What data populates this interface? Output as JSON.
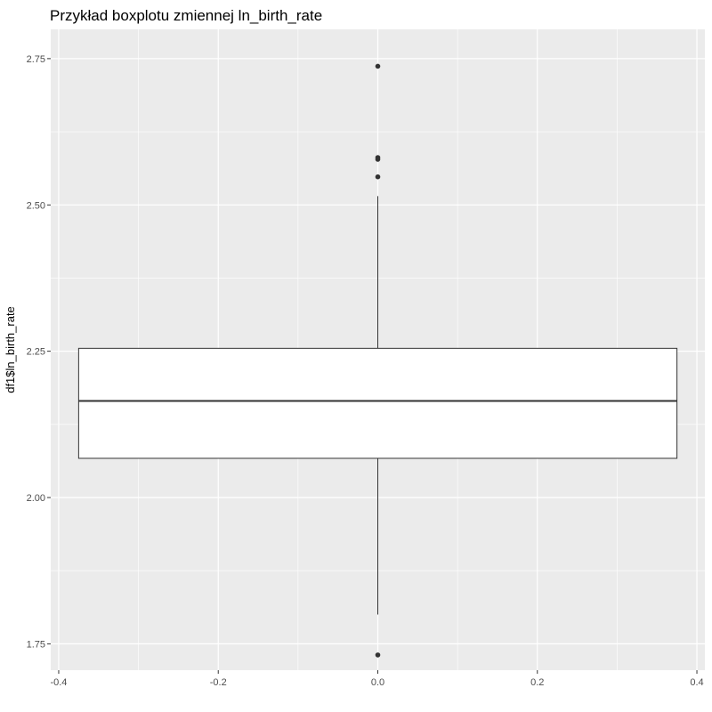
{
  "chart_data": {
    "type": "boxplot",
    "title": "Przykład boxplotu zmiennej ln_birth_rate",
    "xlabel": "",
    "ylabel": "df1$ln_birth_rate",
    "xlim": [
      -0.41,
      0.41
    ],
    "ylim": [
      1.705,
      2.8
    ],
    "x_ticks": [
      -0.4,
      -0.2,
      0.0,
      0.2,
      0.4
    ],
    "x_tick_labels": [
      "-0.4",
      "-0.2",
      "0.0",
      "0.2",
      "0.4"
    ],
    "y_ticks": [
      1.75,
      2.0,
      2.25,
      2.5,
      2.75
    ],
    "y_tick_labels": [
      "1.75",
      "2.00",
      "2.25",
      "2.50",
      "2.75"
    ],
    "x_minor_ticks": [
      -0.3,
      -0.1,
      0.1,
      0.3
    ],
    "y_minor_ticks": [
      1.875,
      2.125,
      2.375,
      2.625
    ],
    "grid": true,
    "background_color": "#ebebeb",
    "grid_color": "#ffffff",
    "box": {
      "x_center": 0.0,
      "x_min": -0.375,
      "x_max": 0.375,
      "q1": 2.067,
      "median": 2.165,
      "q3": 2.255,
      "whisker_low": 1.8,
      "whisker_high": 2.515
    },
    "outliers": [
      {
        "x": 0.0,
        "y": 2.737
      },
      {
        "x": 0.0,
        "y": 2.581
      },
      {
        "x": 0.0,
        "y": 2.578
      },
      {
        "x": 0.0,
        "y": 2.548
      },
      {
        "x": 0.0,
        "y": 1.731
      }
    ]
  }
}
